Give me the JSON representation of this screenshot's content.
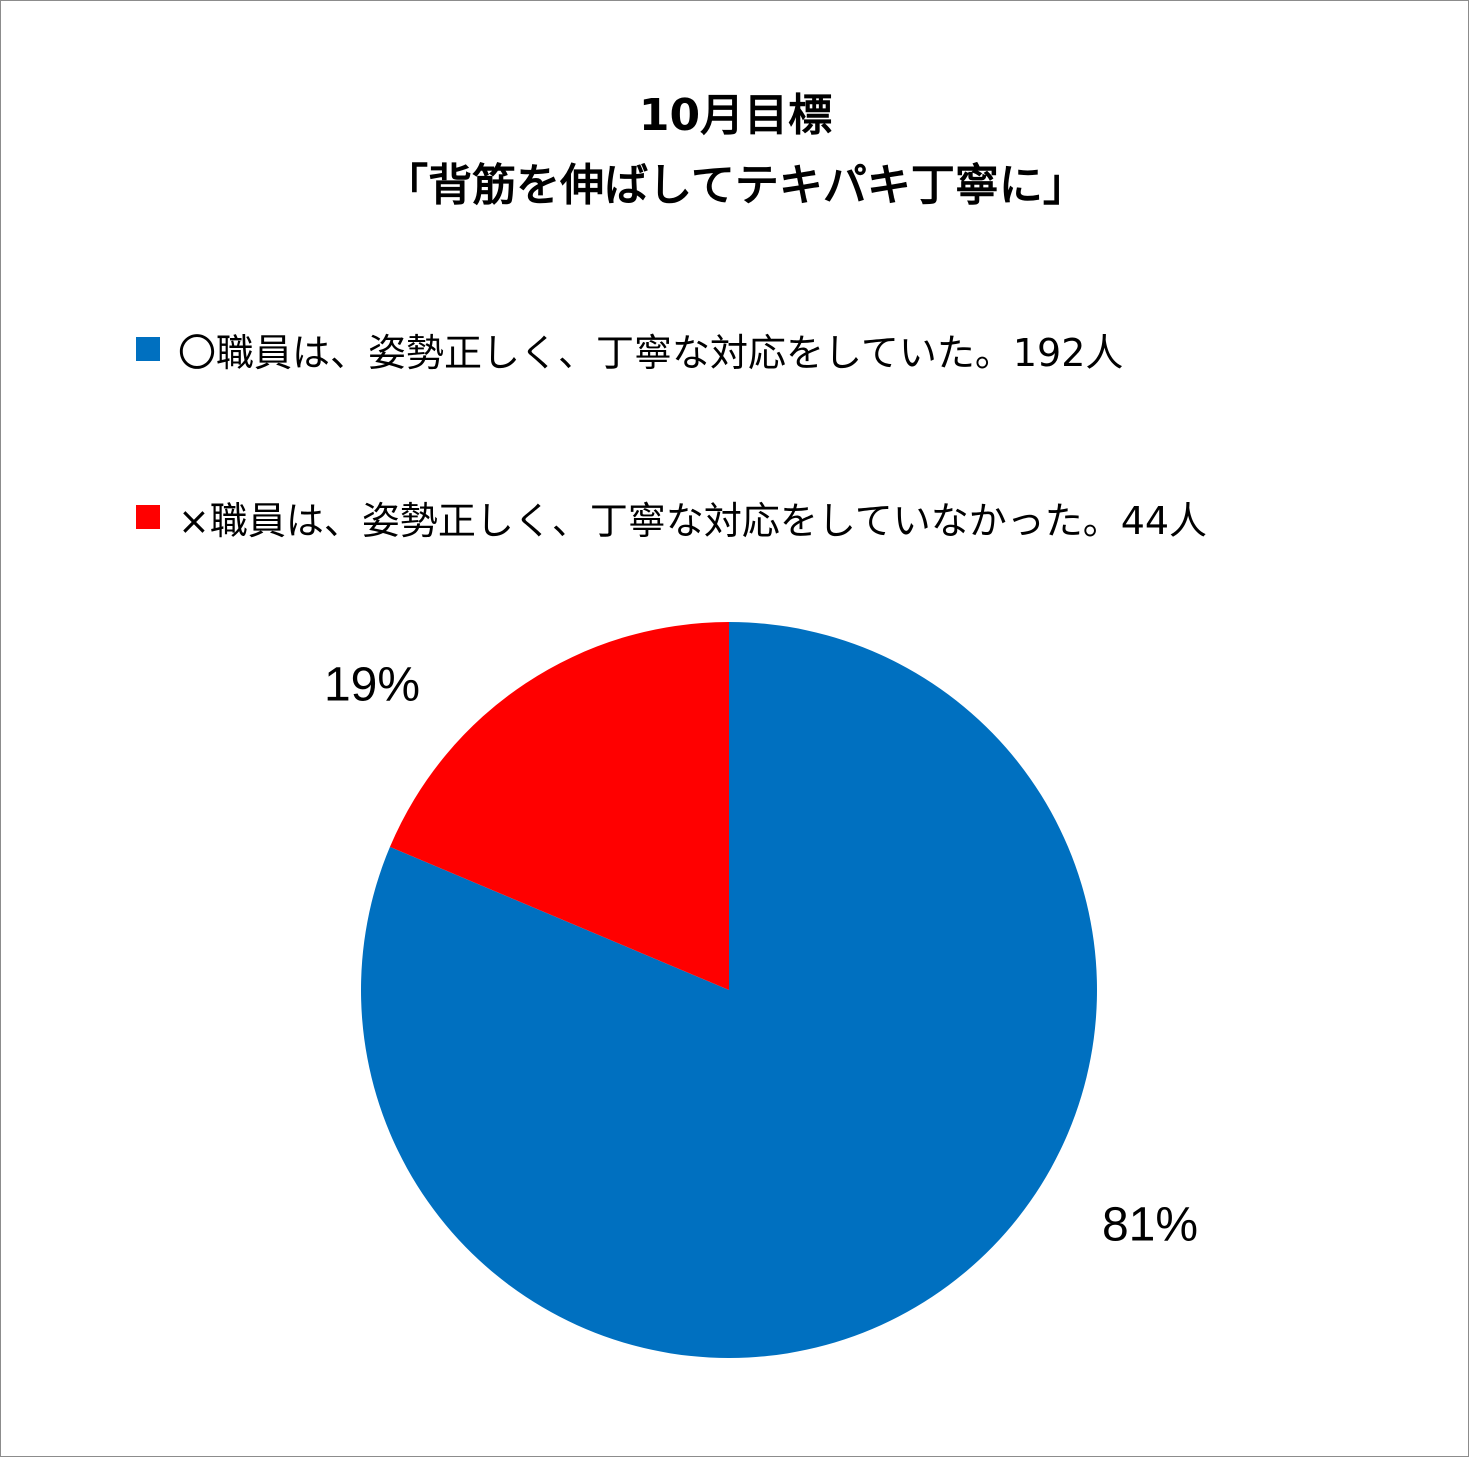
{
  "chart_data": {
    "type": "pie",
    "title": [
      "10月目標",
      "「背筋を伸ばしてテキパキ丁寧に」"
    ],
    "legend_position": "top",
    "series": [
      {
        "name": "〇職員は、姿勢正しく、丁寧な対応をしていた。192人",
        "value": 192,
        "label": "81%",
        "color": "#0070c0"
      },
      {
        "name": "×職員は、姿勢正しく、丁寧な対応をしていなかった。44人",
        "value": 44,
        "label": "19%",
        "color": "#ff0000"
      }
    ]
  }
}
